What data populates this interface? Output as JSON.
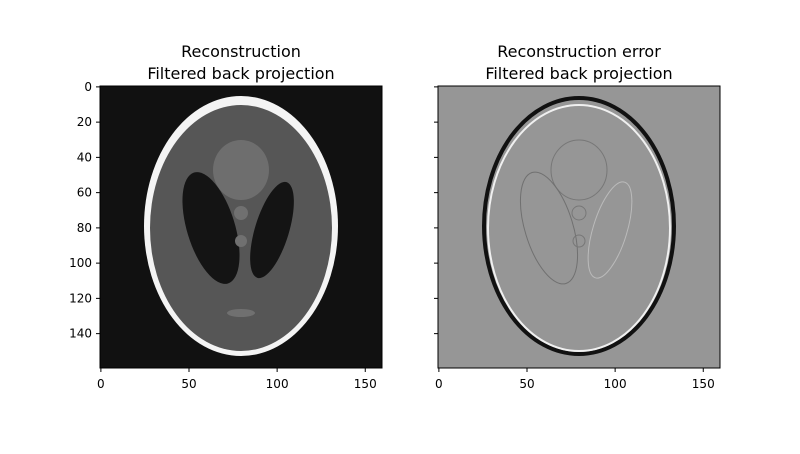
{
  "chart_data": [
    {
      "type": "image",
      "title": [
        "Reconstruction",
        "Filtered back projection"
      ],
      "cmap": "gray",
      "xlim": [
        -0.5,
        159.5
      ],
      "ylim": [
        159.5,
        -0.5
      ],
      "xticks": [
        0,
        50,
        100,
        150
      ],
      "yticks": [
        0,
        20,
        40,
        60,
        80,
        100,
        120,
        140
      ],
      "show_ytick_labels": true
    },
    {
      "type": "image",
      "title": [
        "Reconstruction error",
        "Filtered back projection"
      ],
      "cmap": "gray",
      "xlim": [
        -0.5,
        159.5
      ],
      "ylim": [
        159.5,
        -0.5
      ],
      "xticks": [
        0,
        50,
        100,
        150
      ],
      "yticks": [
        0,
        20,
        40,
        60,
        80,
        100,
        120,
        140
      ],
      "show_ytick_labels": false
    }
  ]
}
